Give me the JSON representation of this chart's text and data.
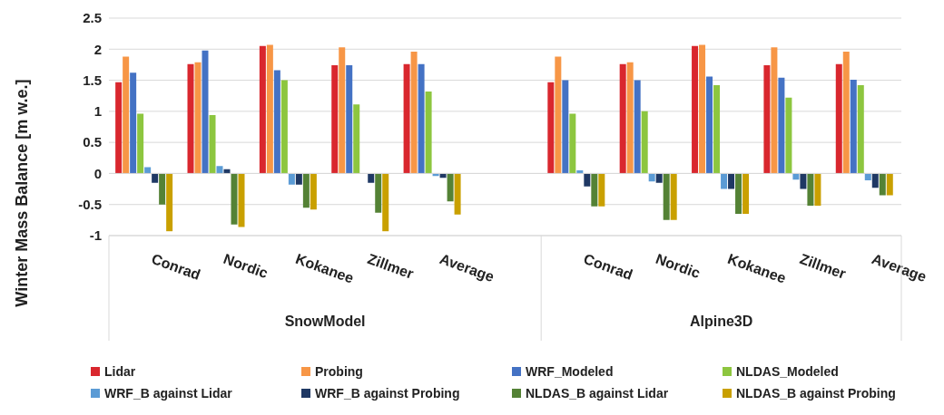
{
  "chart_data": {
    "type": "bar",
    "ylabel": "Winter Mass Balance [m w.e.]",
    "categories": [
      "Conrad",
      "Nordic",
      "Kokanee",
      "Zillmer",
      "Average",
      null,
      "Conrad",
      "Nordic",
      "Kokanee",
      "Zillmer",
      "Average"
    ],
    "annotations": [
      "SnowModel",
      "Alpine3D"
    ],
    "series": [
      {
        "name": "Lidar",
        "color": "#d9272e",
        "values": [
          1.47,
          1.76,
          2.05,
          1.74,
          1.76,
          null,
          1.47,
          1.76,
          2.05,
          1.74,
          1.76
        ]
      },
      {
        "name": "Probing",
        "color": "#f79646",
        "values": [
          1.88,
          1.79,
          2.07,
          2.03,
          1.96,
          null,
          1.88,
          1.79,
          2.07,
          2.03,
          1.96
        ]
      },
      {
        "name": "WRF_Modeled",
        "color": "#4472c4",
        "values": [
          1.62,
          1.98,
          1.66,
          1.74,
          1.76,
          null,
          1.5,
          1.5,
          1.56,
          1.54,
          1.51
        ]
      },
      {
        "name": "NLDAS_Modeled",
        "color": "#8dc63f",
        "values": [
          0.96,
          0.94,
          1.5,
          1.11,
          1.32,
          null,
          0.96,
          1.0,
          1.42,
          1.22,
          1.42
        ]
      },
      {
        "name": "WRF_B against Lidar",
        "color": "#5b9bd5",
        "values": [
          0.1,
          0.12,
          -0.18,
          0,
          -0.04,
          null,
          0.05,
          -0.13,
          -0.25,
          -0.1,
          -0.11
        ]
      },
      {
        "name": "WRF_B against Probing",
        "color": "#1f3864",
        "values": [
          -0.15,
          0.07,
          -0.18,
          -0.15,
          -0.07,
          null,
          -0.21,
          -0.15,
          -0.25,
          -0.25,
          -0.23
        ]
      },
      {
        "name": "NLDAS_B against Lidar",
        "color": "#548235",
        "values": [
          -0.5,
          -0.82,
          -0.55,
          -0.63,
          -0.45,
          null,
          -0.53,
          -0.75,
          -0.65,
          -0.52,
          -0.35
        ]
      },
      {
        "name": "NLDAS_B against Probing",
        "color": "#c9a000",
        "values": [
          -0.93,
          -0.86,
          -0.58,
          -0.93,
          -0.66,
          null,
          -0.53,
          -0.75,
          -0.65,
          -0.52,
          -0.35
        ]
      }
    ],
    "ylim": [
      -1,
      2.5
    ],
    "yticks": [
      -1,
      -0.5,
      0,
      0.5,
      1,
      1.5,
      2,
      2.5
    ],
    "grid": "y",
    "legend": "bottom"
  }
}
